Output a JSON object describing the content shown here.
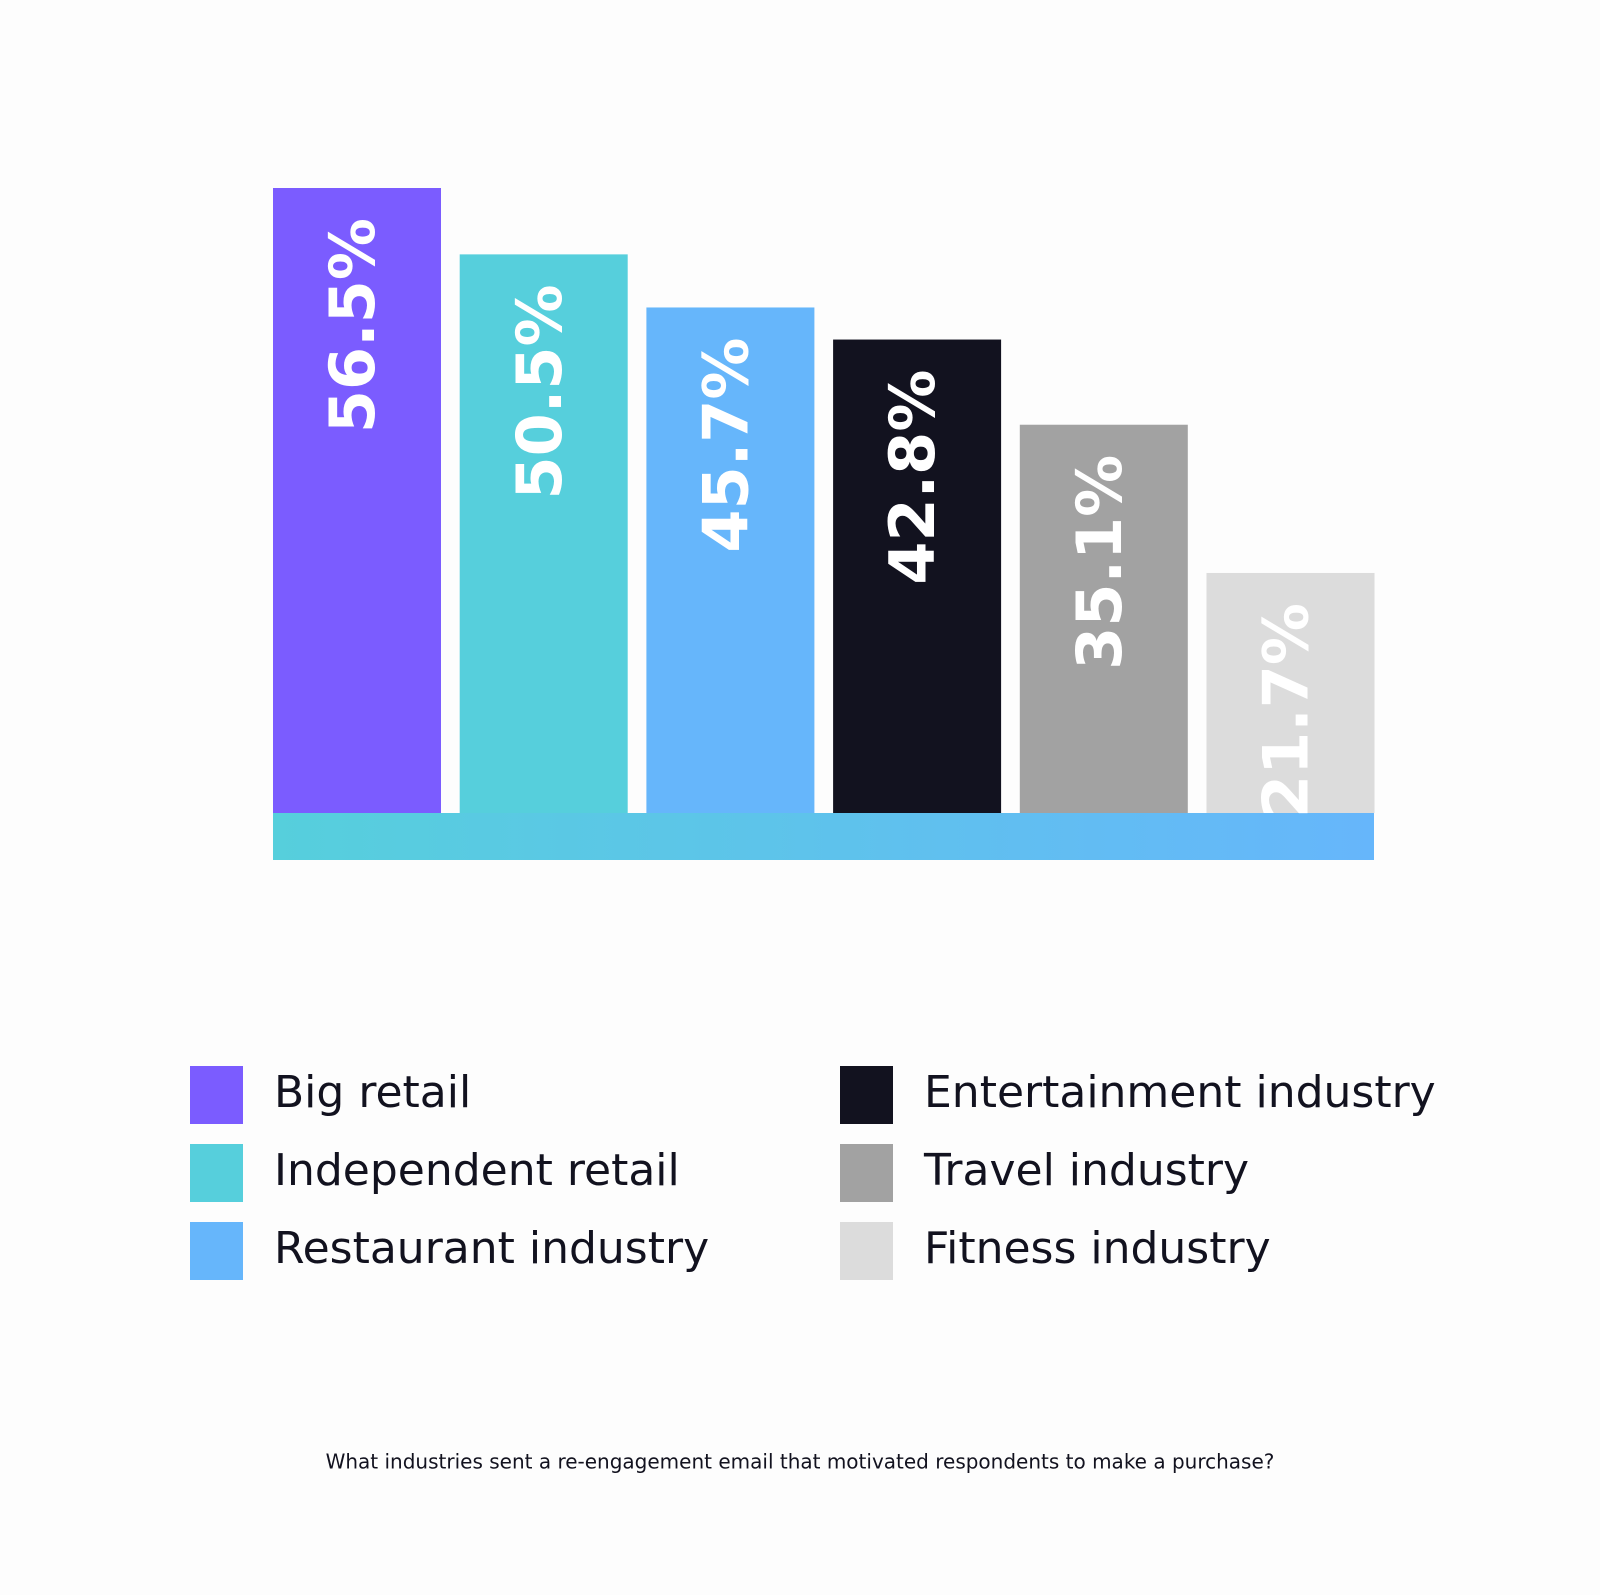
{
  "chart_data": {
    "type": "bar",
    "categories": [
      "Big retail",
      "Independent retail",
      "Restaurant industry",
      "Entertainment industry",
      "Travel industry",
      "Fitness industry"
    ],
    "values": [
      56.5,
      50.5,
      45.7,
      42.8,
      35.1,
      21.7
    ],
    "value_labels": [
      "56.5%",
      "50.5%",
      "45.7%",
      "42.8%",
      "35.1%",
      "21.7%"
    ],
    "colors": [
      "#7b5cff",
      "#56cfdc",
      "#66b6fb",
      "#12121f",
      "#a2a2a2",
      "#dcdcdc"
    ],
    "caption": "What industries sent a re-engagement email that motivated respondents to make a purchase?"
  }
}
